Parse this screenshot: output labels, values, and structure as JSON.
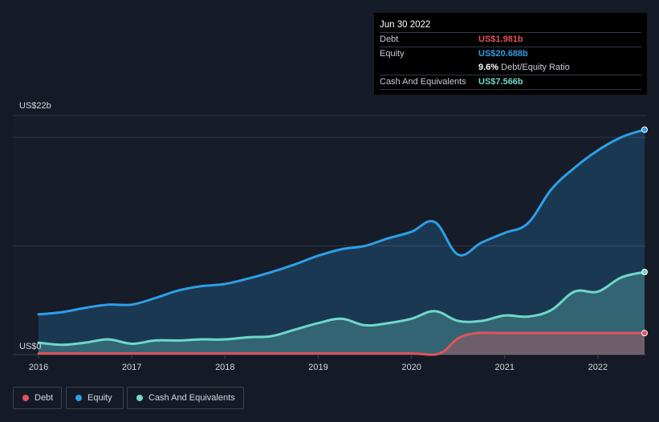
{
  "tooltip": {
    "date": "Jun 30 2022",
    "debt_label": "Debt",
    "debt_value": "US$1.981b",
    "equity_label": "Equity",
    "equity_value": "US$20.688b",
    "ratio_value": "9.6%",
    "ratio_label": "Debt/Equity Ratio",
    "cash_label": "Cash And Equivalents",
    "cash_value": "US$7.566b"
  },
  "legend": {
    "debt": "Debt",
    "equity": "Equity",
    "cash": "Cash And Equivalents"
  },
  "colors": {
    "debt": "#e0535d",
    "equity": "#2d9fe8",
    "cash": "#6fd8c8",
    "background": "#151b26"
  },
  "chart_data": {
    "type": "area",
    "y_top_label": "US$22b",
    "y_zero_label": "US$0",
    "ylim": [
      0,
      22
    ],
    "xlim": [
      2016,
      2022.5
    ],
    "x_ticks": [
      2016,
      2017,
      2018,
      2019,
      2020,
      2021,
      2022
    ],
    "x_tick_labels": [
      "2016",
      "2017",
      "2018",
      "2019",
      "2020",
      "2021",
      "2022"
    ],
    "gridlines_y": [
      10,
      20
    ],
    "series": [
      {
        "name": "Equity",
        "color_key": "equity",
        "x": [
          2016.0,
          2016.25,
          2016.5,
          2016.75,
          2017.0,
          2017.25,
          2017.5,
          2017.75,
          2018.0,
          2018.25,
          2018.5,
          2018.75,
          2019.0,
          2019.25,
          2019.5,
          2019.75,
          2020.0,
          2020.25,
          2020.5,
          2020.75,
          2021.0,
          2021.25,
          2021.5,
          2021.75,
          2022.0,
          2022.25,
          2022.5
        ],
        "values": [
          3.7,
          3.9,
          4.3,
          4.6,
          4.6,
          5.2,
          5.9,
          6.3,
          6.5,
          7.0,
          7.6,
          8.3,
          9.1,
          9.7,
          10.0,
          10.7,
          11.3,
          12.2,
          9.2,
          10.3,
          11.2,
          12.1,
          15.2,
          17.2,
          18.8,
          20.0,
          20.7
        ]
      },
      {
        "name": "Cash And Equivalents",
        "color_key": "cash",
        "x": [
          2016.0,
          2016.25,
          2016.5,
          2016.75,
          2017.0,
          2017.25,
          2017.5,
          2017.75,
          2018.0,
          2018.25,
          2018.5,
          2018.75,
          2019.0,
          2019.25,
          2019.5,
          2019.75,
          2020.0,
          2020.25,
          2020.5,
          2020.75,
          2021.0,
          2021.25,
          2021.5,
          2021.75,
          2022.0,
          2022.25,
          2022.5
        ],
        "values": [
          1.1,
          0.9,
          1.1,
          1.4,
          1.0,
          1.3,
          1.3,
          1.4,
          1.4,
          1.6,
          1.7,
          2.3,
          2.9,
          3.3,
          2.7,
          2.9,
          3.3,
          4.0,
          3.1,
          3.1,
          3.6,
          3.5,
          4.1,
          5.8,
          5.8,
          7.1,
          7.6
        ]
      },
      {
        "name": "Debt",
        "color_key": "debt",
        "x": [
          2016.0,
          2016.5,
          2017.0,
          2017.5,
          2018.0,
          2018.5,
          2019.0,
          2019.5,
          2020.0,
          2020.3,
          2020.5,
          2020.7,
          2021.0,
          2021.5,
          2022.0,
          2022.5
        ],
        "values": [
          0.1,
          0.1,
          0.1,
          0.1,
          0.1,
          0.1,
          0.1,
          0.1,
          0.1,
          0.1,
          1.5,
          1.98,
          1.98,
          1.98,
          1.98,
          1.98
        ]
      }
    ]
  }
}
